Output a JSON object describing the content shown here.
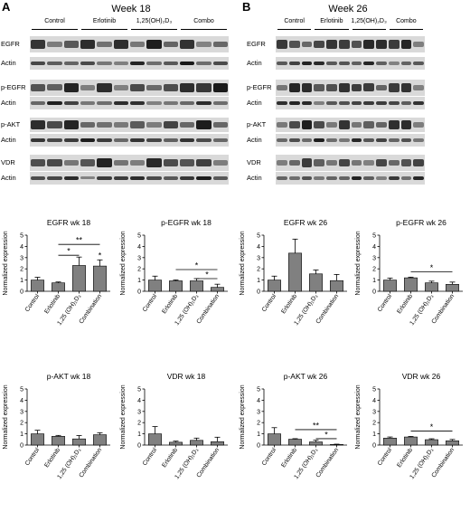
{
  "panels": [
    {
      "letter": "A",
      "title": "Week 18",
      "groups": [
        "Control",
        "Erlotinib",
        "1,25(OH)₂D₃",
        "Combo"
      ],
      "rows": [
        "EGFR",
        "Actin",
        "p-EGFR",
        "Actin",
        "p-AKT",
        "Actin",
        "VDR",
        "Actin"
      ]
    },
    {
      "letter": "B",
      "title": "Week 26",
      "groups": [
        "Control",
        "Erlotinib",
        "1,25(OH)₂D₃",
        "Combo"
      ],
      "rows": [
        "EGFR",
        "Actin",
        "p-EGFR",
        "Actin",
        "p-AKT",
        "Actin",
        "VDR",
        "Actin"
      ]
    }
  ],
  "chart_data": [
    {
      "type": "bar",
      "title": "EGFR wk 18",
      "categories": [
        "Control",
        "Erlotinib",
        "1,25 (OH)₂D₃",
        "Combination"
      ],
      "values": [
        1.0,
        0.75,
        2.3,
        2.25
      ],
      "errors": [
        0.25,
        0.08,
        0.75,
        0.55
      ],
      "ylabel": "Normalized expression",
      "ylim": [
        0,
        5
      ],
      "yticks": [
        0,
        1,
        2,
        3,
        4,
        5
      ],
      "annotations": [
        {
          "label": "**",
          "from": 1,
          "to": 3
        },
        {
          "label": "*",
          "from": 1,
          "to": 2
        },
        {
          "label": "*",
          "at": 3
        }
      ]
    },
    {
      "type": "bar",
      "title": "p-EGFR wk 18",
      "categories": [
        "Control",
        "Erlotinib",
        "1,25 (OH)₂D₃",
        "Combination"
      ],
      "values": [
        1.0,
        0.93,
        0.93,
        0.35
      ],
      "errors": [
        0.35,
        0.08,
        0.2,
        0.28
      ],
      "ylabel": "Normalized expression",
      "ylim": [
        0,
        5
      ],
      "yticks": [
        0,
        1,
        2,
        3,
        4,
        5
      ],
      "annotations": [
        {
          "label": "*",
          "from": 1,
          "to": 3
        },
        {
          "label": "*",
          "from": 2,
          "to": 3
        }
      ]
    },
    {
      "type": "bar",
      "title": "EGFR wk 26",
      "categories": [
        "Control",
        "Erlotinib",
        "1,25 (OH)₂D₃",
        "Combination"
      ],
      "values": [
        1.0,
        3.4,
        1.55,
        0.95
      ],
      "errors": [
        0.35,
        1.25,
        0.35,
        0.55
      ],
      "ylabel": "Normalized expression",
      "ylim": [
        0,
        5
      ],
      "yticks": [
        0,
        1,
        2,
        3,
        4,
        5
      ],
      "annotations": []
    },
    {
      "type": "bar",
      "title": "p-EGFR wk 26",
      "categories": [
        "Control",
        "Erlotinib",
        "1,25 (OH)₂D₃",
        "Combination"
      ],
      "values": [
        1.0,
        1.2,
        0.75,
        0.62
      ],
      "errors": [
        0.18,
        0.06,
        0.15,
        0.2
      ],
      "ylabel": "Normalized expression",
      "ylim": [
        0,
        5
      ],
      "yticks": [
        0,
        1,
        2,
        3,
        4,
        5
      ],
      "annotations": [
        {
          "label": "*",
          "from": 1,
          "to": 3
        }
      ]
    },
    {
      "type": "bar",
      "title": "p-AKT wk 18",
      "categories": [
        "Control",
        "Erlotinib",
        "1,25 (OH)₂D₃",
        "Combination"
      ],
      "values": [
        1.0,
        0.78,
        0.55,
        0.92
      ],
      "errors": [
        0.32,
        0.08,
        0.3,
        0.18
      ],
      "ylabel": "Normalized expression",
      "ylim": [
        0,
        5
      ],
      "yticks": [
        0,
        1,
        2,
        3,
        4,
        5
      ],
      "annotations": []
    },
    {
      "type": "bar",
      "title": "VDR wk 18",
      "categories": [
        "Control",
        "Erlotinib",
        "1,25 (OH)₂D₃",
        "Combination"
      ],
      "values": [
        1.0,
        0.25,
        0.42,
        0.3
      ],
      "errors": [
        0.65,
        0.1,
        0.2,
        0.4
      ],
      "ylabel": "Normalized expression",
      "ylim": [
        0,
        5
      ],
      "yticks": [
        0,
        1,
        2,
        3,
        4,
        5
      ],
      "annotations": []
    },
    {
      "type": "bar",
      "title": "p-AKT wk 26",
      "categories": [
        "Control",
        "Erlotinib",
        "1,25 (OH)₂D₃",
        "Combination"
      ],
      "values": [
        1.0,
        0.52,
        0.28,
        0.05
      ],
      "errors": [
        0.55,
        0.05,
        0.15,
        0.03
      ],
      "ylabel": "Normalized expression",
      "ylim": [
        0,
        5
      ],
      "yticks": [
        0,
        1,
        2,
        3,
        4,
        5
      ],
      "annotations": [
        {
          "label": "**",
          "from": 1,
          "to": 3
        },
        {
          "label": "*",
          "from": 2,
          "to": 3
        }
      ]
    },
    {
      "type": "bar",
      "title": "VDR wk 26",
      "categories": [
        "Control",
        "Erlotinib",
        "1,25 (OH)₂D₃",
        "Combination"
      ],
      "values": [
        0.62,
        0.72,
        0.48,
        0.38
      ],
      "errors": [
        0.1,
        0.05,
        0.08,
        0.12
      ],
      "ylabel": "Normalized expression",
      "ylim": [
        0,
        5
      ],
      "yticks": [
        0,
        1,
        2,
        3,
        4,
        5
      ],
      "annotations": [
        {
          "label": "*",
          "from": 1,
          "to": 3
        }
      ]
    }
  ]
}
